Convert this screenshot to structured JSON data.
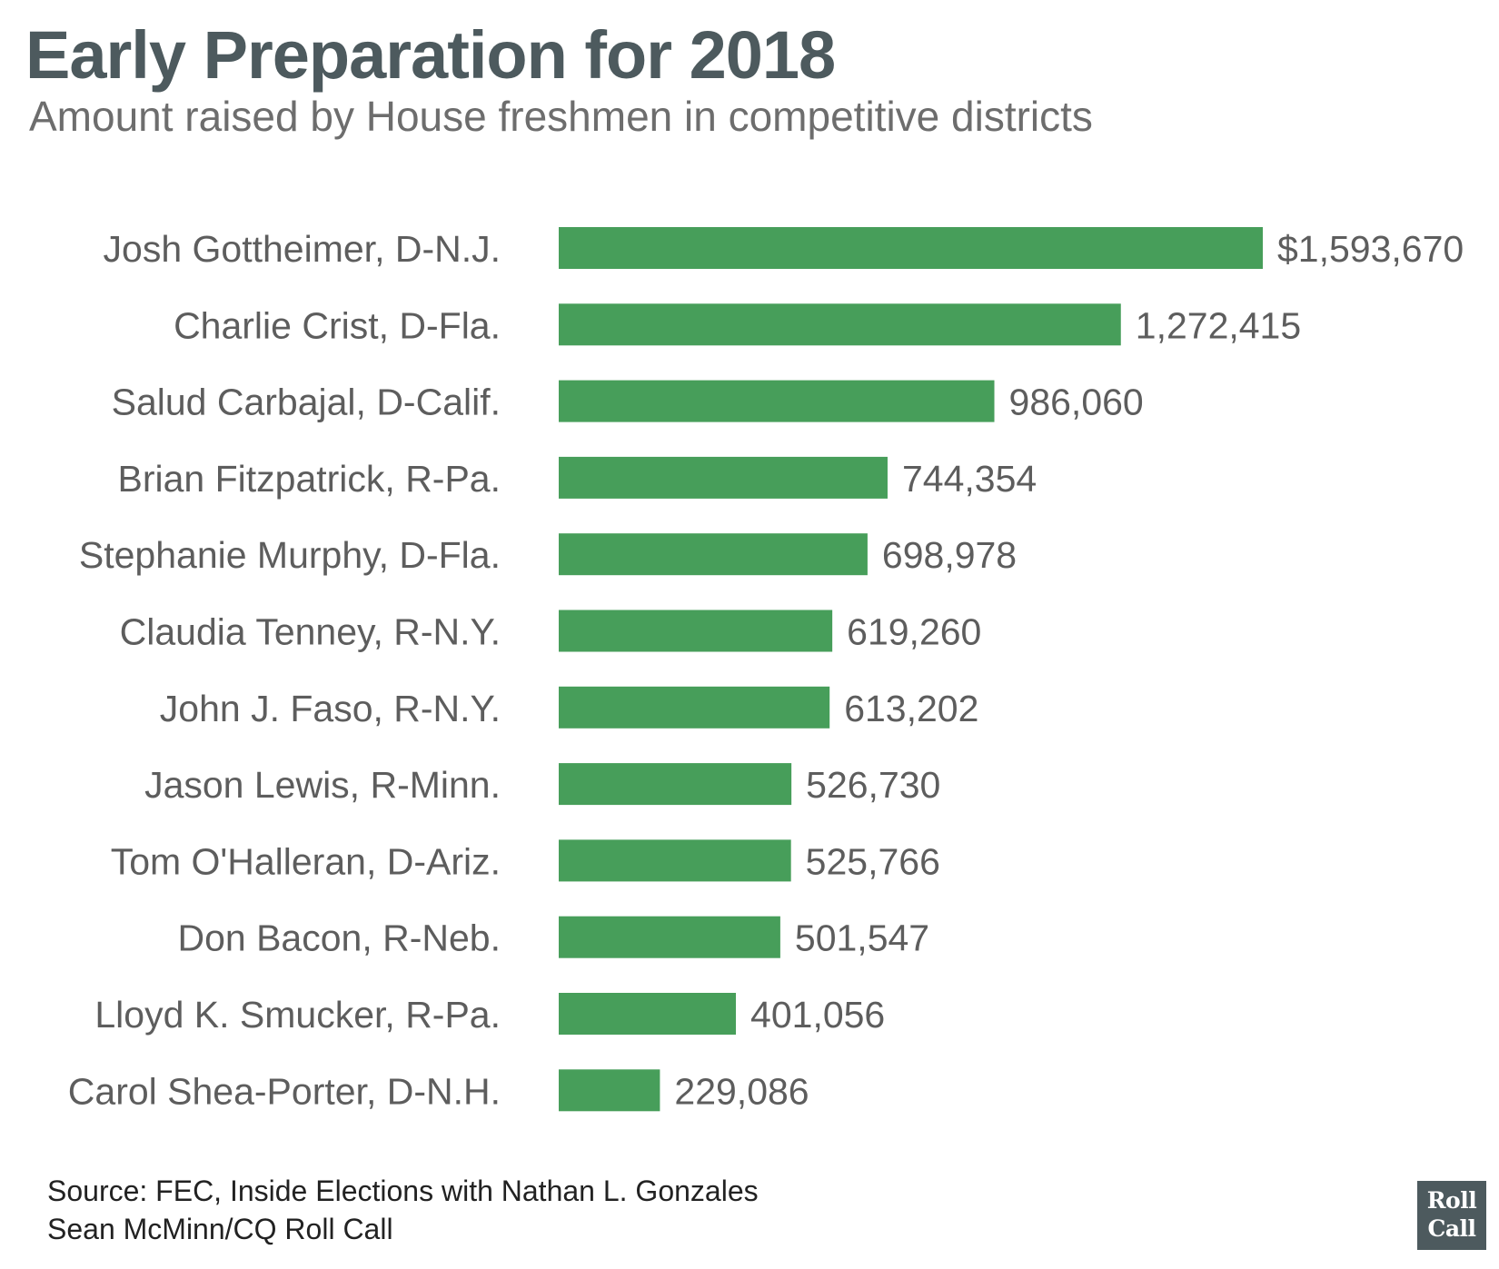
{
  "header": {
    "title": "Early Preparation for 2018",
    "subtitle": "Amount raised by House freshmen in competitive districts"
  },
  "chart_data": {
    "type": "bar",
    "orientation": "horizontal",
    "title": "Early Preparation for 2018",
    "subtitle": "Amount raised by House freshmen in competitive districts",
    "categories": [
      "Josh Gottheimer, D-N.J.",
      "Charlie Crist, D-Fla.",
      "Salud Carbajal, D-Calif.",
      "Brian Fitzpatrick, R-Pa.",
      "Stephanie Murphy, D-Fla.",
      "Claudia Tenney, R-N.Y.",
      "John J. Faso, R-N.Y.",
      "Jason Lewis, R-Minn.",
      "Tom O'Halleran, D-Ariz.",
      "Don Bacon, R-Neb.",
      "Lloyd K. Smucker, R-Pa.",
      "Carol Shea-Porter, D-N.H."
    ],
    "values": [
      1593670,
      1272415,
      986060,
      744354,
      698978,
      619260,
      613202,
      526730,
      525766,
      501547,
      401056,
      229086
    ],
    "value_labels": [
      "$1,593,670",
      "1,272,415",
      "986,060",
      "744,354",
      "698,978",
      "619,260",
      "613,202",
      "526,730",
      "525,766",
      "501,547",
      "401,056",
      "229,086"
    ],
    "xlim": [
      0,
      1593670
    ],
    "grid": false,
    "legend": "none",
    "bar_color": "#479e5a",
    "label_color": "#5d5d5d"
  },
  "footer": {
    "source": "Source: FEC, Inside Elections with Nathan L. Gonzales",
    "credit": "Sean McMinn/CQ Roll Call"
  },
  "logo": {
    "line1": "Roll",
    "line2": "Call",
    "background": "#4d5a5e"
  }
}
